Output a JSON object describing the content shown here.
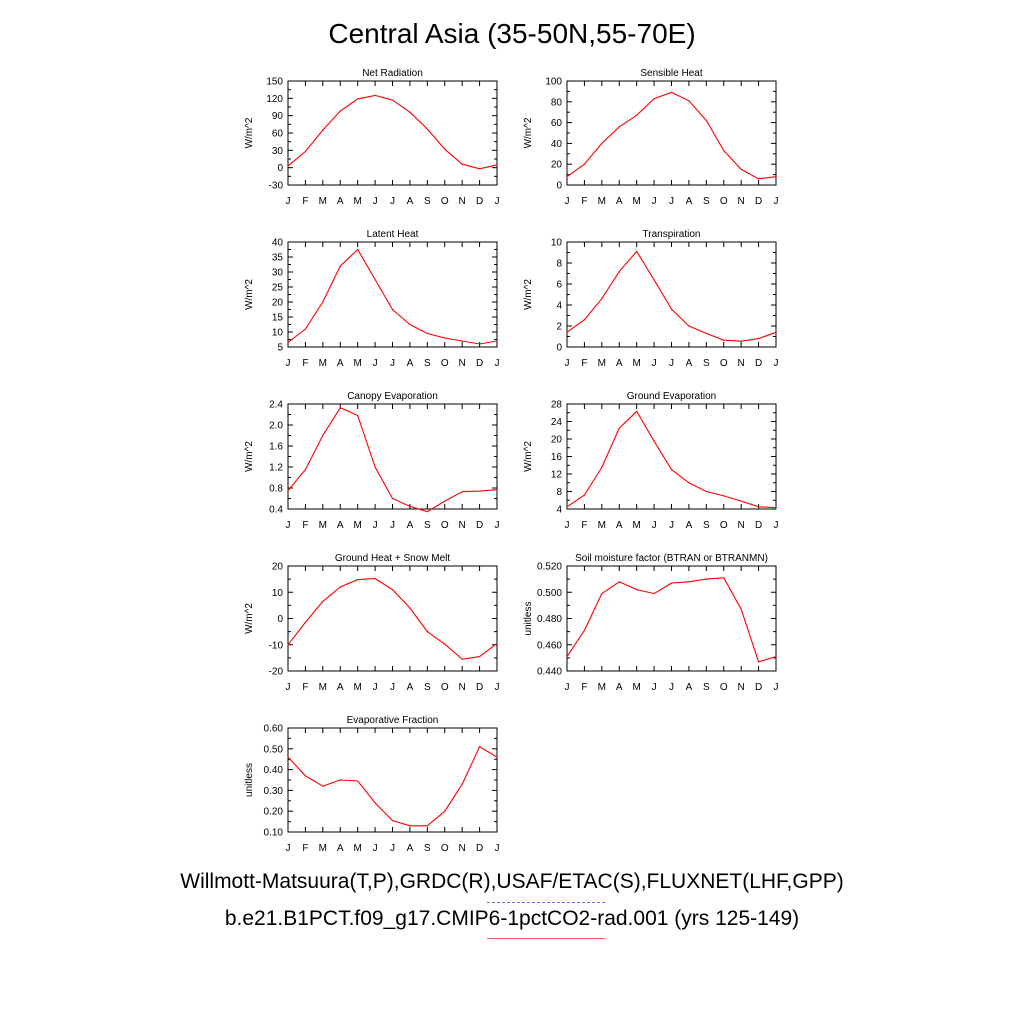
{
  "title": "Central Asia (35-50N,55-70E)",
  "footer": {
    "observations": "Willmott-Matsuura(T,P),GRDC(R),USAF/ETAC(S),FLUXNET(LHF,GPP)",
    "model": "b.e21.B1PCT.f09_g17.CMIP6-1pctCO2-rad.001 (yrs 125-149)"
  },
  "colors": {
    "model_line": "#ff0000",
    "obs_legend": "#6666ee",
    "model_legend": "#ee6666"
  },
  "chart_data": [
    {
      "type": "line",
      "title": "Net Radiation",
      "ylabel": "W/m^2",
      "categories": [
        "J",
        "F",
        "M",
        "A",
        "M",
        "J",
        "J",
        "A",
        "S",
        "O",
        "N",
        "D",
        "J"
      ],
      "ylim": [
        -30,
        150
      ],
      "yticks": [
        -30,
        0,
        30,
        60,
        90,
        120,
        150
      ],
      "ytick_labels": [
        "-30",
        "0",
        "30",
        "60",
        "90",
        "120",
        "150"
      ],
      "series": [
        {
          "values": [
            3,
            28,
            65,
            98,
            119,
            125,
            117,
            96,
            67,
            32,
            6,
            -2,
            5
          ]
        }
      ]
    },
    {
      "type": "line",
      "title": "Sensible Heat",
      "ylabel": "W/m^2",
      "categories": [
        "J",
        "F",
        "M",
        "A",
        "M",
        "J",
        "J",
        "A",
        "S",
        "O",
        "N",
        "D",
        "J"
      ],
      "ylim": [
        0,
        100
      ],
      "yticks": [
        0,
        20,
        40,
        60,
        80,
        100
      ],
      "ytick_labels": [
        "0",
        "20",
        "40",
        "60",
        "80",
        "100"
      ],
      "series": [
        {
          "values": [
            8,
            20,
            40,
            56,
            67,
            83,
            89,
            81,
            62,
            33,
            15,
            6,
            8
          ]
        }
      ]
    },
    {
      "type": "line",
      "title": "Latent Heat",
      "ylabel": "W/m^2",
      "categories": [
        "J",
        "F",
        "M",
        "A",
        "M",
        "J",
        "J",
        "A",
        "S",
        "O",
        "N",
        "D",
        "J"
      ],
      "ylim": [
        5,
        40
      ],
      "yticks": [
        5,
        10,
        15,
        20,
        25,
        30,
        35,
        40
      ],
      "ytick_labels": [
        "5",
        "10",
        "15",
        "20",
        "25",
        "30",
        "35",
        "40"
      ],
      "series": [
        {
          "values": [
            6.5,
            11,
            20,
            32,
            37.5,
            27.5,
            17.5,
            12.5,
            9.5,
            8,
            7,
            6,
            7
          ]
        }
      ]
    },
    {
      "type": "line",
      "title": "Transpiration",
      "ylabel": "W/m^2",
      "categories": [
        "J",
        "F",
        "M",
        "A",
        "M",
        "J",
        "J",
        "A",
        "S",
        "O",
        "N",
        "D",
        "J"
      ],
      "ylim": [
        0,
        10
      ],
      "yticks": [
        0,
        2,
        4,
        6,
        8,
        10
      ],
      "ytick_labels": [
        "0",
        "2",
        "4",
        "6",
        "8",
        "10"
      ],
      "series": [
        {
          "values": [
            1.4,
            2.6,
            4.6,
            7.2,
            9.1,
            6.4,
            3.6,
            2.0,
            1.3,
            0.65,
            0.55,
            0.8,
            1.4
          ]
        }
      ]
    },
    {
      "type": "line",
      "title": "Canopy Evaporation",
      "ylabel": "W/m^2",
      "categories": [
        "J",
        "F",
        "M",
        "A",
        "M",
        "J",
        "J",
        "A",
        "S",
        "O",
        "N",
        "D",
        "J"
      ],
      "ylim": [
        0.4,
        2.4
      ],
      "yticks": [
        0.4,
        0.8,
        1.2,
        1.6,
        2.0,
        2.4
      ],
      "ytick_labels": [
        "0.4",
        "0.8",
        "1.2",
        "1.6",
        "2.0",
        "2.4"
      ],
      "series": [
        {
          "values": [
            0.75,
            1.15,
            1.8,
            2.33,
            2.18,
            1.2,
            0.6,
            0.45,
            0.35,
            0.55,
            0.73,
            0.74,
            0.77
          ]
        }
      ]
    },
    {
      "type": "line",
      "title": "Ground Evaporation",
      "ylabel": "W/m^2",
      "categories": [
        "J",
        "F",
        "M",
        "A",
        "M",
        "J",
        "J",
        "A",
        "S",
        "O",
        "N",
        "D",
        "J"
      ],
      "ylim": [
        4,
        28
      ],
      "yticks": [
        4,
        8,
        12,
        16,
        20,
        24,
        28
      ],
      "ytick_labels": [
        "4",
        "8",
        "12",
        "16",
        "20",
        "24",
        "28"
      ],
      "series": [
        {
          "values": [
            4.5,
            7.2,
            13.5,
            22.5,
            26.3,
            19.5,
            13,
            10,
            8,
            7,
            5.8,
            4.5,
            4.3
          ]
        }
      ]
    },
    {
      "type": "line",
      "title": "Ground Heat + Snow Melt",
      "ylabel": "W/m^2",
      "categories": [
        "J",
        "F",
        "M",
        "A",
        "M",
        "J",
        "J",
        "A",
        "S",
        "O",
        "N",
        "D",
        "J"
      ],
      "ylim": [
        -20,
        20
      ],
      "yticks": [
        -20,
        -10,
        0,
        10,
        20
      ],
      "ytick_labels": [
        "-20",
        "-10",
        "0",
        "10",
        "20"
      ],
      "series": [
        {
          "values": [
            -10,
            -1.5,
            6.5,
            12,
            14.8,
            15.2,
            11,
            4,
            -5,
            -9.8,
            -15.5,
            -14.5,
            -9.5
          ]
        }
      ]
    },
    {
      "type": "line",
      "title": "Soil moisture factor (BTRAN or BTRANMN)",
      "ylabel": "unitless",
      "categories": [
        "J",
        "F",
        "M",
        "A",
        "M",
        "J",
        "J",
        "A",
        "S",
        "O",
        "N",
        "D",
        "J"
      ],
      "ylim": [
        0.44,
        0.52
      ],
      "yticks": [
        0.44,
        0.46,
        0.48,
        0.5,
        0.52
      ],
      "ytick_labels": [
        "0.440",
        "0.460",
        "0.480",
        "0.500",
        "0.520"
      ],
      "series": [
        {
          "values": [
            0.451,
            0.471,
            0.499,
            0.508,
            0.502,
            0.499,
            0.507,
            0.508,
            0.51,
            0.511,
            0.487,
            0.447,
            0.451
          ]
        }
      ]
    },
    {
      "type": "line",
      "title": "Evaporative Fraction",
      "ylabel": "unitless",
      "categories": [
        "J",
        "F",
        "M",
        "A",
        "M",
        "J",
        "J",
        "A",
        "S",
        "O",
        "N",
        "D",
        "J"
      ],
      "ylim": [
        0.1,
        0.6
      ],
      "yticks": [
        0.1,
        0.2,
        0.3,
        0.4,
        0.5,
        0.6
      ],
      "ytick_labels": [
        "0.10",
        "0.20",
        "0.30",
        "0.40",
        "0.50",
        "0.60"
      ],
      "series": [
        {
          "values": [
            0.46,
            0.37,
            0.32,
            0.35,
            0.345,
            0.24,
            0.155,
            0.13,
            0.13,
            0.2,
            0.33,
            0.51,
            0.46
          ]
        }
      ]
    }
  ]
}
